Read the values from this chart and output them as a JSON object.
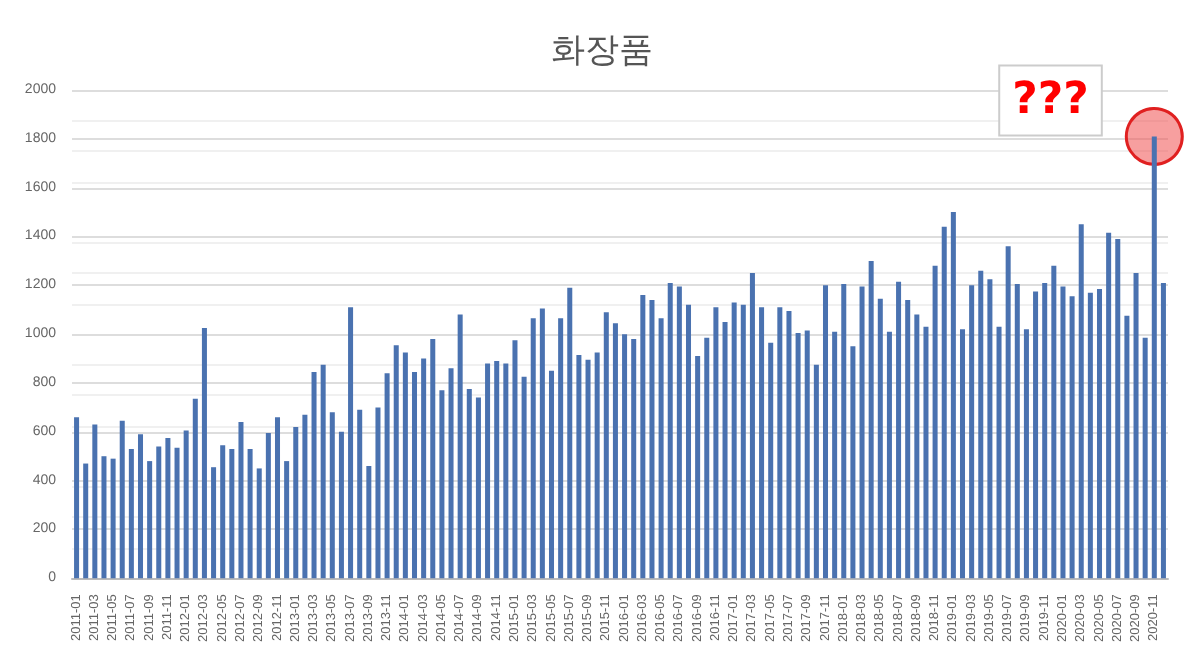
{
  "chart_data": {
    "type": "bar",
    "title": "화장품",
    "categories": [
      "2011-01",
      null,
      "2011-03",
      null,
      "2011-05",
      null,
      "2011-07",
      null,
      "2011-09",
      null,
      "2011-11",
      null,
      "2012-01",
      null,
      "2012-03",
      null,
      "2012-05",
      null,
      "2012-07",
      null,
      "2012-09",
      null,
      "2012-11",
      null,
      "2013-01",
      null,
      "2013-03",
      null,
      "2013-05",
      null,
      "2013-07",
      null,
      "2013-09",
      null,
      "2013-11",
      null,
      "2014-01",
      null,
      "2014-03",
      null,
      "2014-05",
      null,
      "2014-07",
      null,
      "2014-09",
      null,
      "2014-11",
      null,
      "2015-01",
      null,
      "2015-03",
      null,
      "2015-05",
      null,
      "2015-07",
      null,
      "2015-09",
      null,
      "2015-11",
      null,
      "2016-01",
      null,
      "2016-03",
      null,
      "2016-05",
      null,
      "2016-07",
      null,
      "2016-09",
      null,
      "2016-11",
      null,
      "2017-01",
      null,
      "2017-03",
      null,
      "2017-05",
      null,
      "2017-07",
      null,
      "2017-09",
      null,
      "2017-11",
      null,
      "2018-01",
      null,
      "2018-03",
      null,
      "2018-05",
      null,
      "2018-07",
      null,
      "2018-09",
      null,
      "2018-11",
      null,
      "2019-01",
      null,
      "2019-03",
      null,
      "2019-05",
      null,
      "2019-07",
      null,
      "2019-09",
      null,
      "2019-11",
      null,
      "2020-01",
      null,
      "2020-03",
      null,
      "2020-05",
      null,
      "2020-07",
      null,
      "2020-09",
      null,
      "2020-11",
      null
    ],
    "values": [
      660,
      470,
      630,
      500,
      490,
      645,
      530,
      590,
      480,
      540,
      575,
      535,
      605,
      735,
      1025,
      455,
      545,
      530,
      640,
      530,
      450,
      595,
      660,
      480,
      620,
      670,
      845,
      875,
      680,
      600,
      1110,
      690,
      460,
      700,
      840,
      955,
      925,
      845,
      900,
      980,
      770,
      860,
      1080,
      775,
      740,
      880,
      890,
      880,
      975,
      825,
      1065,
      1105,
      850,
      1065,
      1190,
      915,
      895,
      925,
      1090,
      1045,
      1000,
      980,
      1160,
      1140,
      1065,
      1210,
      1195,
      1120,
      910,
      985,
      1110,
      1050,
      1130,
      1120,
      1250,
      1110,
      965,
      1110,
      1095,
      1005,
      1015,
      875,
      1200,
      1010,
      1205,
      950,
      1195,
      1300,
      1145,
      1010,
      1215,
      1140,
      1080,
      1030,
      1280,
      1440,
      1500,
      1020,
      1200,
      1260,
      1225,
      1030,
      1360,
      1205,
      1020,
      1175,
      1210,
      1280,
      1195,
      1155,
      1450,
      1170,
      1185,
      1415,
      1390,
      1075,
      1250,
      985,
      1810,
      1210
    ],
    "color": "#4a72b0",
    "ylim": [
      0,
      2000
    ],
    "yticks": [
      0,
      200,
      400,
      600,
      800,
      1000,
      1200,
      1400,
      1600,
      1800,
      2000
    ],
    "grid": true,
    "annotations": [
      {
        "text": "???",
        "x": "2020-11",
        "y": 1810
      }
    ]
  }
}
